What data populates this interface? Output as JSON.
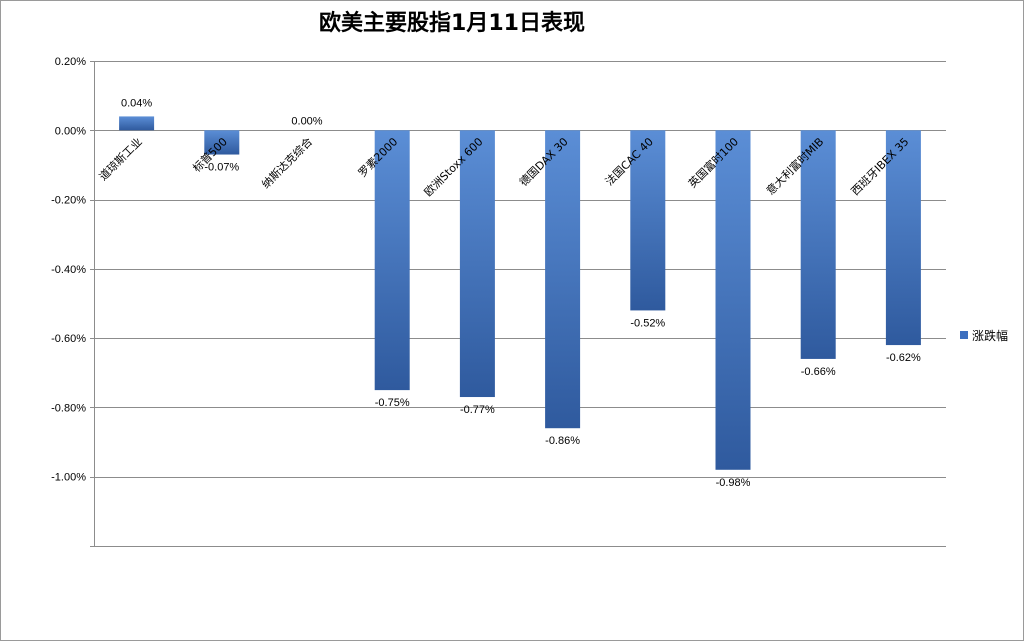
{
  "chart_data": {
    "type": "bar",
    "title": "欧美主要股指1月11日表现",
    "categories": [
      "道琼斯工业",
      "标普500",
      "纳斯达克综合",
      "罗素2000",
      "欧洲Stoxx 600",
      "德国DAX 30",
      "法国CAC 40",
      "英国富时100",
      "意大利富时MIB",
      "西班牙IBEX 35"
    ],
    "series": [
      {
        "name": "涨跌幅",
        "values": [
          0.04,
          -0.07,
          0.0,
          -0.75,
          -0.77,
          -0.86,
          -0.52,
          -0.98,
          -0.66,
          -0.62
        ],
        "labels": [
          "0.04%",
          "-0.07%",
          "0.00%",
          "-0.75%",
          "-0.77%",
          "-0.86%",
          "-0.52%",
          "-0.98%",
          "-0.66%",
          "-0.62%"
        ]
      }
    ],
    "yticks": [
      "0.20%",
      "0.00%",
      "-0.20%",
      "-0.40%",
      "-0.60%",
      "-0.80%",
      "-1.00%"
    ],
    "ylim": [
      -1.2,
      0.2
    ],
    "grid": true,
    "legend_position": "right",
    "bar_color_light": "#5b8ed6",
    "bar_color_dark": "#2f5a9e"
  }
}
